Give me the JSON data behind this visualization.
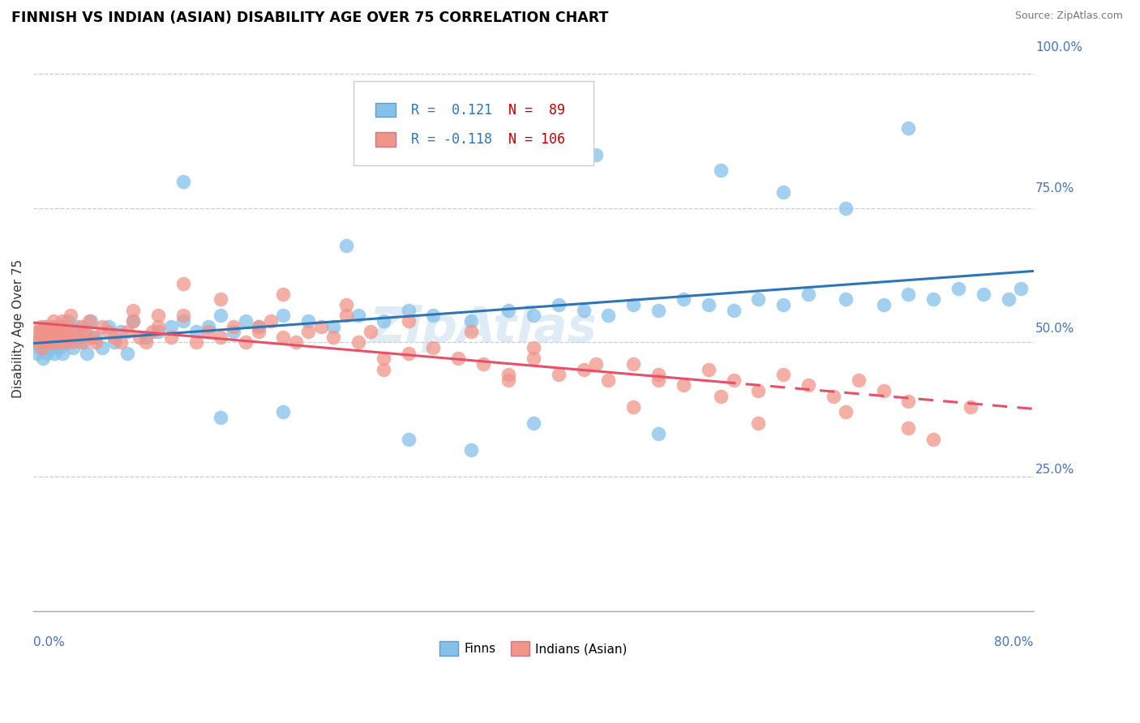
{
  "title": "FINNISH VS INDIAN (ASIAN) DISABILITY AGE OVER 75 CORRELATION CHART",
  "source": "Source: ZipAtlas.com",
  "ylabel": "Disability Age Over 75",
  "xmin": 0.0,
  "xmax": 0.8,
  "ymin": 0.0,
  "ymax": 1.05,
  "finns_color": "#85c1e9",
  "indians_color": "#f1948a",
  "trend_finn_color": "#2e75b6",
  "trend_indian_color": "#e8506a",
  "watermark": "ZipAtlas",
  "finns_x": [
    0.003,
    0.004,
    0.005,
    0.006,
    0.007,
    0.008,
    0.009,
    0.01,
    0.011,
    0.012,
    0.013,
    0.014,
    0.015,
    0.016,
    0.017,
    0.018,
    0.02,
    0.021,
    0.022,
    0.023,
    0.025,
    0.027,
    0.028,
    0.03,
    0.032,
    0.035,
    0.038,
    0.04,
    0.043,
    0.046,
    0.05,
    0.055,
    0.06,
    0.065,
    0.07,
    0.075,
    0.08,
    0.09,
    0.1,
    0.11,
    0.12,
    0.13,
    0.14,
    0.15,
    0.16,
    0.17,
    0.18,
    0.2,
    0.22,
    0.24,
    0.26,
    0.28,
    0.3,
    0.32,
    0.35,
    0.38,
    0.4,
    0.42,
    0.44,
    0.46,
    0.48,
    0.5,
    0.52,
    0.54,
    0.56,
    0.58,
    0.6,
    0.62,
    0.65,
    0.68,
    0.7,
    0.72,
    0.74,
    0.76,
    0.78,
    0.79,
    0.25,
    0.3,
    0.4,
    0.5,
    0.35,
    0.2,
    0.15,
    0.12,
    0.45,
    0.55,
    0.6,
    0.65,
    0.7
  ],
  "finns_y": [
    0.48,
    0.5,
    0.49,
    0.52,
    0.51,
    0.47,
    0.53,
    0.5,
    0.48,
    0.52,
    0.51,
    0.49,
    0.53,
    0.5,
    0.48,
    0.52,
    0.51,
    0.49,
    0.53,
    0.48,
    0.52,
    0.5,
    0.54,
    0.51,
    0.49,
    0.53,
    0.5,
    0.52,
    0.48,
    0.54,
    0.51,
    0.49,
    0.53,
    0.5,
    0.52,
    0.48,
    0.54,
    0.51,
    0.52,
    0.53,
    0.54,
    0.52,
    0.53,
    0.55,
    0.52,
    0.54,
    0.53,
    0.55,
    0.54,
    0.53,
    0.55,
    0.54,
    0.56,
    0.55,
    0.54,
    0.56,
    0.55,
    0.57,
    0.56,
    0.55,
    0.57,
    0.56,
    0.58,
    0.57,
    0.56,
    0.58,
    0.57,
    0.59,
    0.58,
    0.57,
    0.59,
    0.58,
    0.6,
    0.59,
    0.58,
    0.6,
    0.68,
    0.32,
    0.35,
    0.33,
    0.3,
    0.37,
    0.36,
    0.8,
    0.85,
    0.82,
    0.78,
    0.75,
    0.9
  ],
  "indians_x": [
    0.003,
    0.004,
    0.005,
    0.006,
    0.007,
    0.008,
    0.009,
    0.01,
    0.011,
    0.012,
    0.013,
    0.014,
    0.015,
    0.016,
    0.017,
    0.018,
    0.019,
    0.02,
    0.021,
    0.022,
    0.023,
    0.024,
    0.025,
    0.026,
    0.027,
    0.028,
    0.03,
    0.032,
    0.034,
    0.036,
    0.038,
    0.04,
    0.042,
    0.045,
    0.048,
    0.05,
    0.055,
    0.06,
    0.065,
    0.07,
    0.075,
    0.08,
    0.085,
    0.09,
    0.095,
    0.1,
    0.11,
    0.12,
    0.13,
    0.14,
    0.15,
    0.16,
    0.17,
    0.18,
    0.19,
    0.2,
    0.21,
    0.22,
    0.23,
    0.24,
    0.25,
    0.26,
    0.27,
    0.28,
    0.3,
    0.32,
    0.34,
    0.36,
    0.38,
    0.4,
    0.42,
    0.44,
    0.46,
    0.48,
    0.5,
    0.52,
    0.54,
    0.56,
    0.58,
    0.6,
    0.62,
    0.64,
    0.66,
    0.68,
    0.7,
    0.35,
    0.4,
    0.25,
    0.3,
    0.45,
    0.5,
    0.55,
    0.15,
    0.1,
    0.2,
    0.08,
    0.12,
    0.18,
    0.28,
    0.38,
    0.48,
    0.58,
    0.65,
    0.7,
    0.75,
    0.72
  ],
  "indians_y": [
    0.5,
    0.52,
    0.51,
    0.53,
    0.49,
    0.52,
    0.51,
    0.5,
    0.53,
    0.52,
    0.51,
    0.5,
    0.52,
    0.54,
    0.5,
    0.53,
    0.51,
    0.52,
    0.5,
    0.53,
    0.54,
    0.51,
    0.5,
    0.52,
    0.53,
    0.51,
    0.55,
    0.5,
    0.52,
    0.51,
    0.53,
    0.5,
    0.52,
    0.54,
    0.51,
    0.5,
    0.53,
    0.52,
    0.51,
    0.5,
    0.52,
    0.54,
    0.51,
    0.5,
    0.52,
    0.53,
    0.51,
    0.55,
    0.5,
    0.52,
    0.51,
    0.53,
    0.5,
    0.52,
    0.54,
    0.51,
    0.5,
    0.52,
    0.53,
    0.51,
    0.55,
    0.5,
    0.52,
    0.45,
    0.48,
    0.49,
    0.47,
    0.46,
    0.44,
    0.47,
    0.44,
    0.45,
    0.43,
    0.46,
    0.44,
    0.42,
    0.45,
    0.43,
    0.41,
    0.44,
    0.42,
    0.4,
    0.43,
    0.41,
    0.39,
    0.52,
    0.49,
    0.57,
    0.54,
    0.46,
    0.43,
    0.4,
    0.58,
    0.55,
    0.59,
    0.56,
    0.61,
    0.53,
    0.47,
    0.43,
    0.38,
    0.35,
    0.37,
    0.34,
    0.38,
    0.32
  ]
}
